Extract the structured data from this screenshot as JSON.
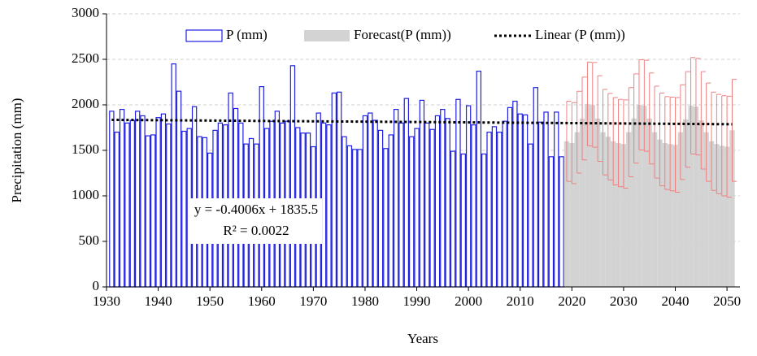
{
  "chart_data": {
    "type": "bar",
    "xlabel": "Years",
    "ylabel": "Precipitation (mm)",
    "xlim": [
      1930,
      2052.5
    ],
    "ylim": [
      0,
      3000
    ],
    "xticks": [
      1930,
      1940,
      1950,
      1960,
      1970,
      1980,
      1990,
      2000,
      2010,
      2020,
      2030,
      2040,
      2050
    ],
    "yticks": [
      0,
      500,
      1000,
      1500,
      2000,
      2500,
      3000
    ],
    "grid": true,
    "legend": "top",
    "annotations": [
      "y = -0.4006x + 1835.5",
      "R² = 0.0022"
    ],
    "series": [
      {
        "name": "P (mm)",
        "color": "#1f1fe0",
        "x": [
          1931,
          1932,
          1933,
          1934,
          1935,
          1936,
          1937,
          1938,
          1939,
          1940,
          1941,
          1942,
          1943,
          1944,
          1945,
          1946,
          1947,
          1948,
          1949,
          1950,
          1951,
          1952,
          1953,
          1954,
          1955,
          1956,
          1957,
          1958,
          1959,
          1960,
          1961,
          1962,
          1963,
          1964,
          1965,
          1966,
          1967,
          1968,
          1969,
          1970,
          1971,
          1972,
          1973,
          1974,
          1975,
          1976,
          1977,
          1978,
          1979,
          1980,
          1981,
          1982,
          1983,
          1984,
          1985,
          1986,
          1987,
          1988,
          1989,
          1990,
          1991,
          1992,
          1993,
          1994,
          1995,
          1996,
          1997,
          1998,
          1999,
          2000,
          2001,
          2002,
          2003,
          2004,
          2005,
          2006,
          2007,
          2008,
          2009,
          2010,
          2011,
          2012,
          2013,
          2014,
          2015,
          2016,
          2017,
          2018
        ],
        "values": [
          1930,
          1700,
          1950,
          1800,
          1830,
          1930,
          1880,
          1660,
          1670,
          1860,
          1900,
          1790,
          2450,
          2150,
          1710,
          1740,
          1980,
          1650,
          1640,
          1470,
          1720,
          1800,
          1780,
          2130,
          1960,
          1800,
          1570,
          1630,
          1570,
          2200,
          1740,
          1820,
          1930,
          1800,
          1820,
          2430,
          1750,
          1690,
          1690,
          1540,
          1910,
          1800,
          1780,
          2130,
          2140,
          1650,
          1550,
          1510,
          1510,
          1880,
          1910,
          1830,
          1720,
          1520,
          1670,
          1950,
          1800,
          2070,
          1650,
          1740,
          2050,
          1800,
          1730,
          1880,
          1950,
          1850,
          1490,
          2060,
          1460,
          1990,
          1780,
          2370,
          1460,
          1700,
          1760,
          1700,
          1820,
          1970,
          2040,
          1900,
          1890,
          1570,
          2190,
          1810,
          1920,
          1430,
          1920,
          1430
        ]
      },
      {
        "name": "Forecast(P (mm))",
        "color": "#d3d3d3",
        "error_color": "#f08080",
        "x": [
          2019,
          2020,
          2021,
          2022,
          2023,
          2024,
          2025,
          2026,
          2027,
          2028,
          2029,
          2030,
          2031,
          2032,
          2033,
          2034,
          2035,
          2036,
          2037,
          2038,
          2039,
          2040,
          2041,
          2042,
          2043,
          2044,
          2045,
          2046,
          2047,
          2048,
          2049,
          2050,
          2051
        ],
        "values": [
          1600,
          1580,
          1700,
          1850,
          2010,
          2000,
          1850,
          1700,
          1650,
          1600,
          1580,
          1570,
          1700,
          1850,
          2000,
          1990,
          1850,
          1700,
          1620,
          1580,
          1570,
          1560,
          1700,
          1840,
          1990,
          1980,
          1830,
          1700,
          1600,
          1570,
          1550,
          1540,
          1720
        ],
        "errors": [
          440,
          445,
          450,
          455,
          460,
          465,
          470,
          470,
          475,
          480,
          480,
          485,
          490,
          490,
          495,
          500,
          500,
          505,
          510,
          510,
          515,
          520,
          520,
          525,
          530,
          530,
          535,
          540,
          540,
          545,
          550,
          555,
          560
        ]
      },
      {
        "name": "Linear (P (mm))",
        "color": "#000000",
        "style": "dotted",
        "x": [
          1931,
          2051
        ],
        "values": [
          1835,
          1787
        ]
      }
    ]
  }
}
